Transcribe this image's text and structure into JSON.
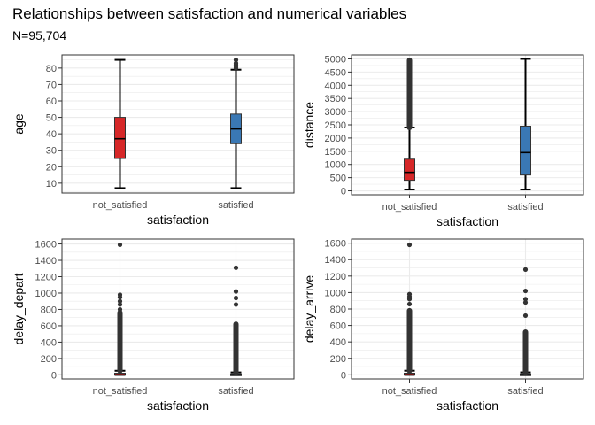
{
  "title": "Relationships between satisfaction and numerical variables",
  "subtitle": "N=95,704",
  "colors": {
    "not_satisfied": "#d62728",
    "satisfied": "#3a78b4",
    "whisker": "#000000",
    "outlier": "#333333",
    "grid": "#ebebeb"
  },
  "chart_data": [
    {
      "type": "box",
      "categories": [
        "not_satisfied",
        "satisfied"
      ],
      "xlabel": "satisfaction",
      "ylabel": "age",
      "ylim": [
        4,
        88
      ],
      "yticks": [
        10,
        20,
        30,
        40,
        50,
        60,
        70,
        80
      ],
      "boxes": [
        {
          "min": 7,
          "q1": 25,
          "median": 37,
          "q3": 50,
          "max": 85,
          "outliers": []
        },
        {
          "min": 7,
          "q1": 34,
          "median": 43,
          "q3": 52,
          "max": 79,
          "outliers": [
            80,
            81,
            82,
            83,
            85
          ]
        }
      ]
    },
    {
      "type": "box",
      "categories": [
        "not_satisfied",
        "satisfied"
      ],
      "xlabel": "satisfaction",
      "ylabel": "distance",
      "ylim": [
        -150,
        5150
      ],
      "yticks": [
        0,
        500,
        1000,
        1500,
        2000,
        2500,
        3000,
        3500,
        4000,
        4500,
        5000
      ],
      "boxes": [
        {
          "min": 50,
          "q1": 400,
          "median": 700,
          "q3": 1200,
          "max": 2400,
          "outliers_range": [
            2400,
            4950
          ],
          "outliers": [
            4950
          ]
        },
        {
          "min": 50,
          "q1": 600,
          "median": 1450,
          "q3": 2450,
          "max": 5000,
          "outliers": []
        }
      ]
    },
    {
      "type": "box",
      "categories": [
        "not_satisfied",
        "satisfied"
      ],
      "xlabel": "satisfaction",
      "ylabel": "delay_depart",
      "ylim": [
        -50,
        1660
      ],
      "yticks": [
        0,
        200,
        400,
        600,
        800,
        1000,
        1200,
        1400,
        1600
      ],
      "boxes": [
        {
          "min": 0,
          "q1": 0,
          "median": 0,
          "q3": 20,
          "max": 50,
          "outliers_range": [
            50,
            760
          ],
          "outliers": [
            800,
            860,
            900,
            950,
            980,
            1590
          ]
        },
        {
          "min": 0,
          "q1": 0,
          "median": 0,
          "q3": 12,
          "max": 30,
          "outliers_range": [
            30,
            620
          ],
          "outliers": [
            860,
            940,
            1020,
            1310
          ]
        }
      ]
    },
    {
      "type": "box",
      "categories": [
        "not_satisfied",
        "satisfied"
      ],
      "xlabel": "satisfaction",
      "ylabel": "delay_arrive",
      "ylim": [
        -50,
        1650
      ],
      "yticks": [
        0,
        200,
        400,
        600,
        800,
        1000,
        1200,
        1400,
        1600
      ],
      "boxes": [
        {
          "min": 0,
          "q1": 0,
          "median": 0,
          "q3": 20,
          "max": 50,
          "outliers_range": [
            50,
            780
          ],
          "outliers": [
            860,
            920,
            950,
            980,
            1580
          ]
        },
        {
          "min": 0,
          "q1": 0,
          "median": 0,
          "q3": 12,
          "max": 30,
          "outliers_range": [
            30,
            520
          ],
          "outliers": [
            720,
            880,
            920,
            1020,
            1280
          ]
        }
      ]
    }
  ]
}
